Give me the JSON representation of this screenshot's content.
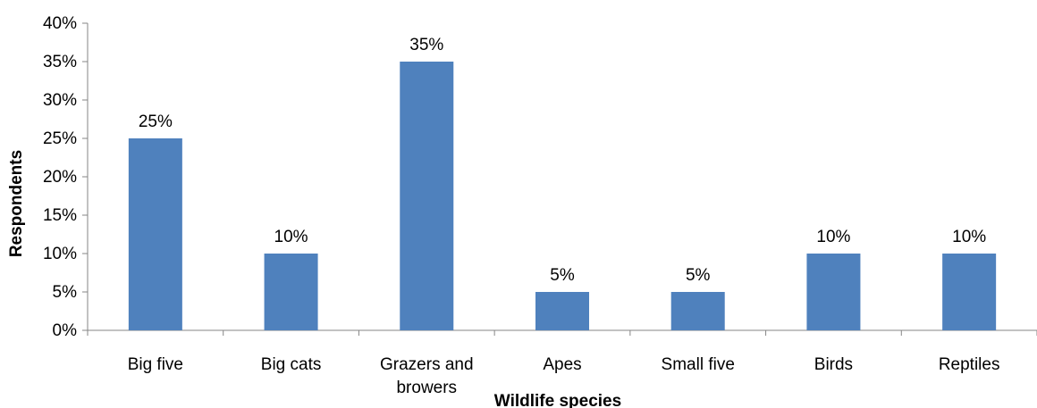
{
  "chart_data": {
    "type": "bar",
    "categories": [
      "Big five",
      "Big cats",
      "Grazers and browers",
      "Apes",
      "Small five",
      "Birds",
      "Reptiles"
    ],
    "category_lines": [
      [
        "Big five"
      ],
      [
        "Big cats"
      ],
      [
        "Grazers and",
        "browers"
      ],
      [
        "Apes"
      ],
      [
        "Small five"
      ],
      [
        "Birds"
      ],
      [
        "Reptiles"
      ]
    ],
    "values": [
      25,
      10,
      35,
      5,
      5,
      10,
      10
    ],
    "data_labels": [
      "25%",
      "10%",
      "35%",
      "5%",
      "5%",
      "10%",
      "10%"
    ],
    "y_ticks": [
      0,
      5,
      10,
      15,
      20,
      25,
      30,
      35,
      40
    ],
    "y_tick_labels": [
      "0%",
      "5%",
      "10%",
      "15%",
      "20%",
      "25%",
      "30%",
      "35%",
      "40%"
    ],
    "ylim": [
      0,
      40
    ],
    "xlabel": "Wildlife species",
    "ylabel": "Respondents",
    "title": "",
    "grid": false,
    "legend": "none",
    "bar_color": "#4f81bd",
    "axis_color": "#868686"
  }
}
